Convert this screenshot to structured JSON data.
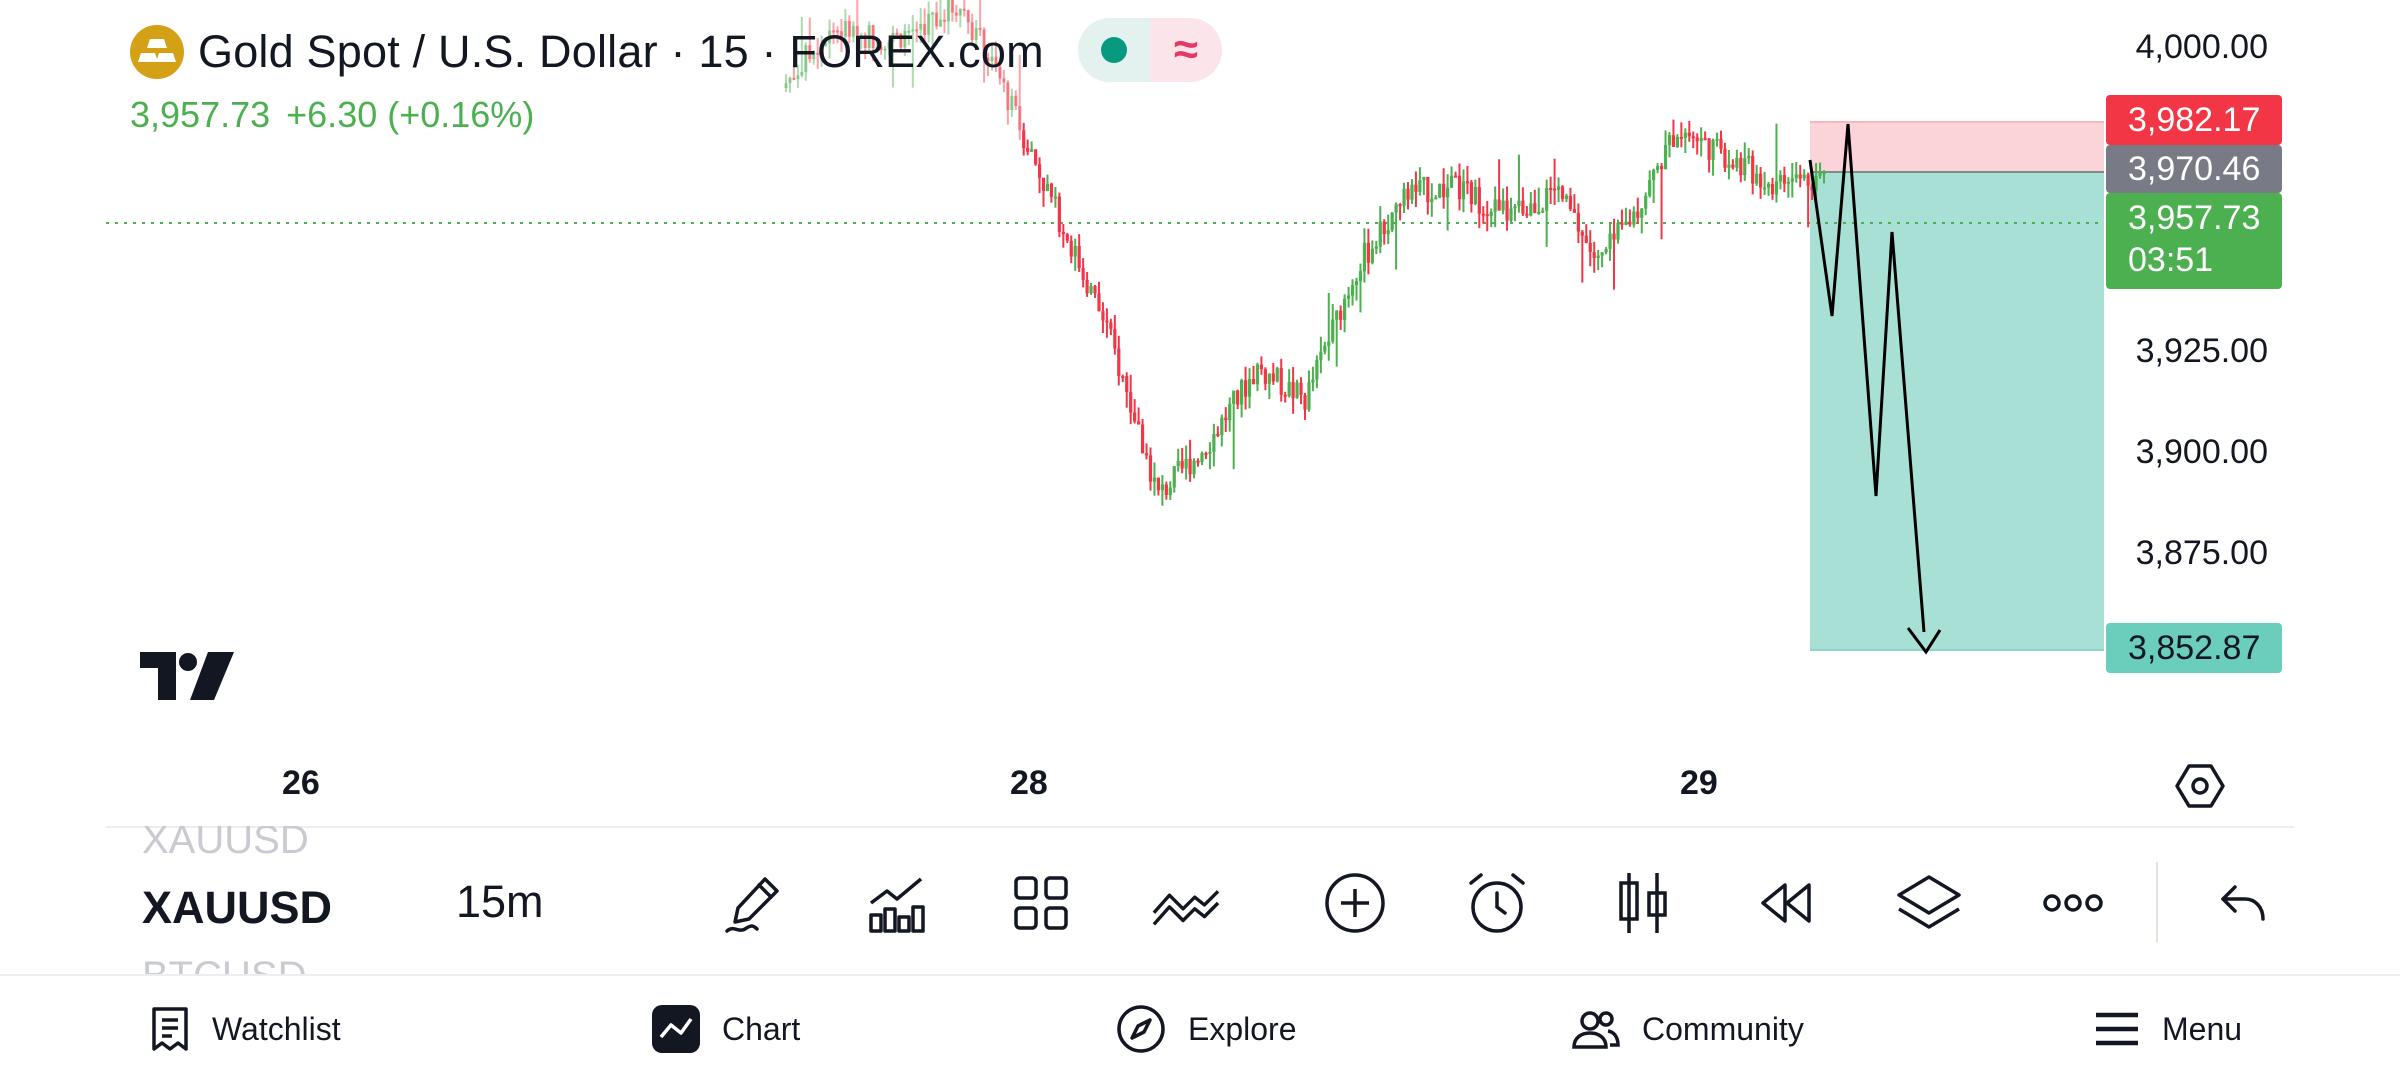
{
  "header": {
    "title": "Gold Spot / U.S. Dollar · 15 · FOREX.com",
    "price": "3,957.73",
    "change": "+6.30 (+0.16%)",
    "status_icon": "market-open-dot",
    "indicator_icon": "wave-icon"
  },
  "price_axis": {
    "labels": [
      "4,000.00",
      "3,925.00",
      "3,900.00",
      "3,875.00"
    ],
    "tags": {
      "stop_loss": "3,982.17",
      "entry": "3,970.46",
      "current_price": "3,957.73",
      "countdown": "03:51",
      "take_profit": "3,852.87"
    }
  },
  "time_axis": {
    "labels": [
      "26",
      "28",
      "29"
    ]
  },
  "chart_data": {
    "type": "candlestick",
    "symbol": "XAUUSD",
    "interval": "15m",
    "current_price": 3957.73,
    "y_range": [
      3832,
      4012
    ],
    "trend_path": [
      3972,
      3933,
      3981,
      3888,
      3954,
      3854
    ],
    "position": {
      "direction": "short",
      "entry": 3970.46,
      "stop_loss": 3982.17,
      "take_profit": 3852.87
    },
    "colors": {
      "up": "#4caf50",
      "down": "#f23645",
      "profit_zone": "#a8e0d6",
      "loss_zone": "#fbd4da"
    }
  },
  "toolbar": {
    "symbols": {
      "previous": "XAUUSD",
      "current": "XAUUSD",
      "next": "BTCUSD"
    },
    "interval": "15m",
    "tools": [
      "pencil-icon",
      "indicators-icon",
      "layout-grid-icon",
      "compare-icon",
      "add-icon",
      "alert-icon",
      "candles-icon",
      "replay-icon",
      "layers-icon",
      "more-icon",
      "undo-icon"
    ]
  },
  "bottom_nav": {
    "items": [
      {
        "label": "Watchlist",
        "icon": "watchlist-icon"
      },
      {
        "label": "Chart",
        "icon": "chart-icon"
      },
      {
        "label": "Explore",
        "icon": "compass-icon"
      },
      {
        "label": "Community",
        "icon": "people-icon"
      },
      {
        "label": "Menu",
        "icon": "menu-icon"
      }
    ]
  }
}
